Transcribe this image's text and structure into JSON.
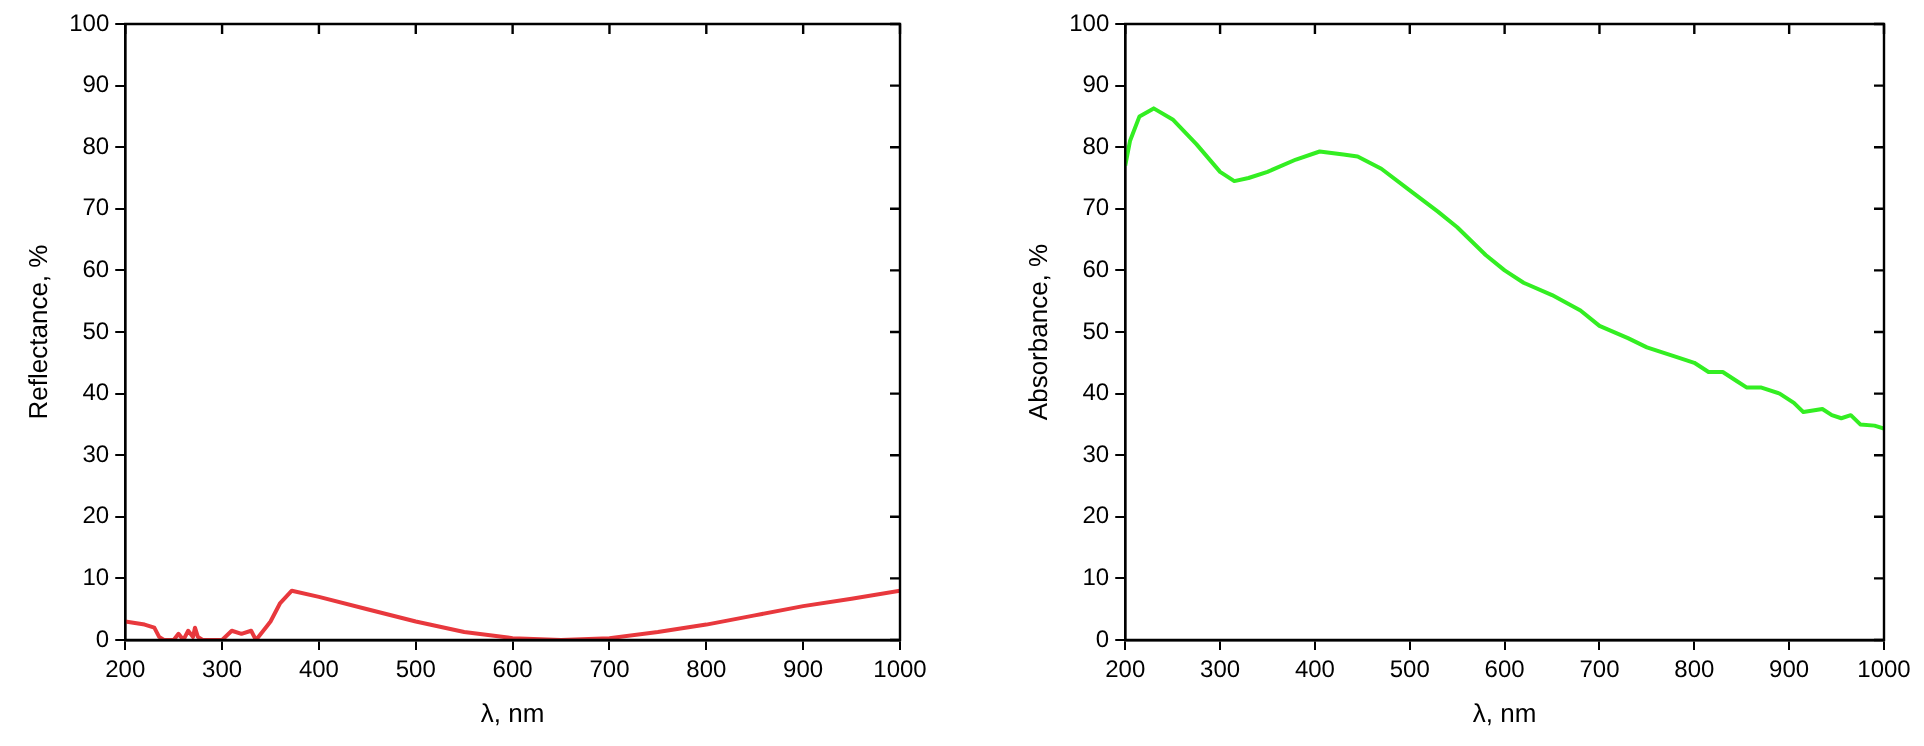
{
  "chart_data": [
    {
      "type": "line",
      "xlabel": "λ, nm",
      "ylabel": "Reflectance, %",
      "xlim": [
        200,
        1000
      ],
      "xticks": [
        200,
        300,
        400,
        500,
        600,
        700,
        800,
        900,
        1000
      ],
      "ylim": [
        0,
        100
      ],
      "yticks": [
        0,
        10,
        20,
        30,
        40,
        50,
        60,
        70,
        80,
        90,
        100
      ],
      "grid": false,
      "legend": false,
      "marker": "none",
      "line_style": "solid",
      "x": [
        200,
        220,
        230,
        235,
        240,
        250,
        255,
        260,
        265,
        270,
        272,
        275,
        280,
        300,
        310,
        320,
        330,
        335,
        345,
        350,
        360,
        372,
        400,
        450,
        500,
        550,
        600,
        650,
        700,
        750,
        800,
        850,
        900,
        950,
        1000
      ],
      "series": [
        {
          "color": "#e8383d",
          "values": [
            3,
            2.5,
            2,
            0.5,
            0,
            0,
            1,
            0,
            1.5,
            0.5,
            2,
            0.5,
            0,
            0,
            1.5,
            1,
            1.5,
            0,
            2,
            3,
            6,
            8,
            7,
            5,
            3,
            1.3,
            0.3,
            0,
            0.3,
            1.3,
            2.5,
            4,
            5.5,
            6.7,
            8
          ]
        }
      ]
    },
    {
      "type": "line",
      "xlabel": "λ, nm",
      "ylabel": "Absorbance, %",
      "xlim": [
        200,
        1000
      ],
      "xticks": [
        200,
        300,
        400,
        500,
        600,
        700,
        800,
        900,
        1000
      ],
      "ylim": [
        0,
        100
      ],
      "yticks": [
        0,
        10,
        20,
        30,
        40,
        50,
        60,
        70,
        80,
        90,
        100
      ],
      "grid": false,
      "legend": false,
      "marker": "none",
      "line_style": "solid",
      "x": [
        200,
        205,
        215,
        230,
        250,
        275,
        300,
        315,
        330,
        350,
        380,
        405,
        430,
        445,
        470,
        500,
        530,
        550,
        580,
        600,
        620,
        650,
        680,
        700,
        730,
        750,
        780,
        800,
        815,
        830,
        845,
        855,
        870,
        890,
        905,
        915,
        935,
        945,
        955,
        965,
        975,
        990,
        1000
      ],
      "series": [
        {
          "color": "#33ee22",
          "values": [
            77,
            81,
            85,
            86.3,
            84.5,
            80.5,
            76,
            74.5,
            75,
            76,
            78,
            79.3,
            78.8,
            78.5,
            76.5,
            73,
            69.5,
            67,
            62.5,
            60,
            58,
            56,
            53.5,
            51,
            49,
            47.5,
            46,
            45,
            43.5,
            43.5,
            42,
            41,
            41,
            40,
            38.5,
            37,
            37.5,
            36.5,
            36,
            36.5,
            35,
            34.8,
            34.3
          ]
        }
      ]
    }
  ]
}
